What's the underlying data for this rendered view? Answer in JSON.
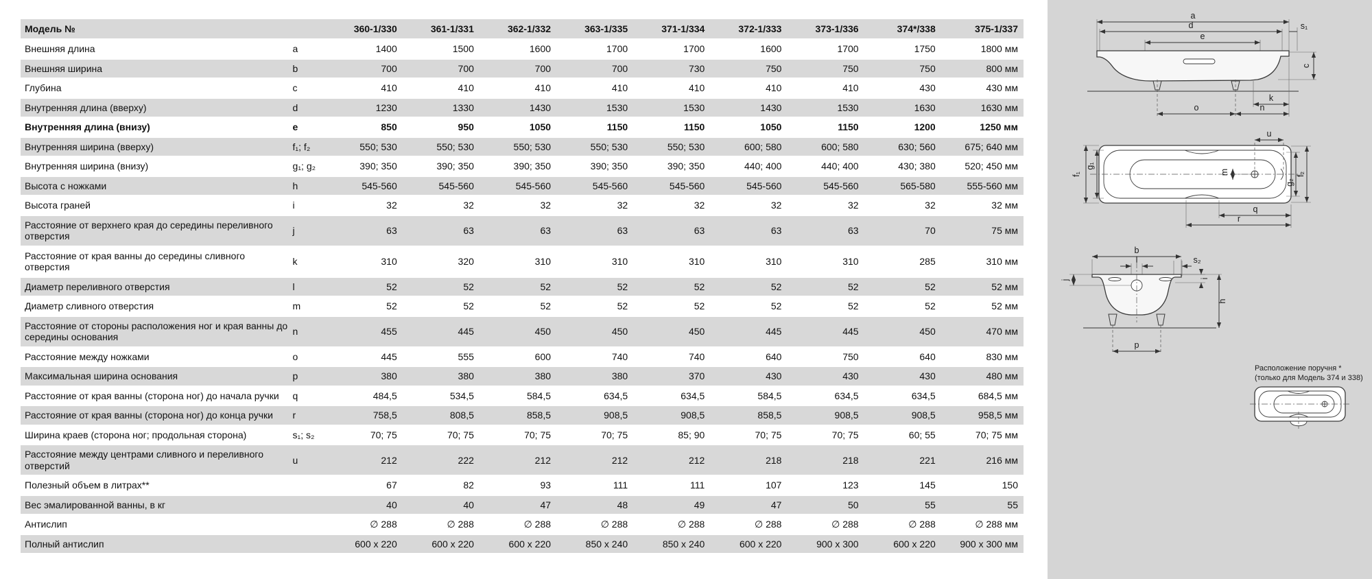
{
  "page": {
    "background": "#ffffff",
    "panel_background": "#d5d5d5",
    "row_stripe": "#d8d8d8",
    "text_color": "#111111"
  },
  "table": {
    "header": {
      "label": "Модель №",
      "models": [
        "360-1/330",
        "361-1/331",
        "362-1/332",
        "363-1/335",
        "371-1/334",
        "372-1/333",
        "373-1/336",
        "374*/338",
        "375-1/337"
      ]
    },
    "rows": [
      {
        "label": "Внешняя длина",
        "letter": "a",
        "values": [
          "1400",
          "1500",
          "1600",
          "1700",
          "1700",
          "1600",
          "1700",
          "1750",
          "1800"
        ],
        "unit": "мм",
        "bold": false
      },
      {
        "label": "Внешняя ширина",
        "letter": "b",
        "values": [
          "700",
          "700",
          "700",
          "700",
          "730",
          "750",
          "750",
          "750",
          "800"
        ],
        "unit": "мм",
        "bold": false
      },
      {
        "label": "Глубина",
        "letter": "c",
        "values": [
          "410",
          "410",
          "410",
          "410",
          "410",
          "410",
          "410",
          "430",
          "430"
        ],
        "unit": "мм",
        "bold": false
      },
      {
        "label": "Внутренняя длина (вверху)",
        "letter": "d",
        "values": [
          "1230",
          "1330",
          "1430",
          "1530",
          "1530",
          "1430",
          "1530",
          "1630",
          "1630"
        ],
        "unit": "мм",
        "bold": false
      },
      {
        "label": "Внутренняя длина (внизу)",
        "letter": "e",
        "values": [
          "850",
          "950",
          "1050",
          "1150",
          "1150",
          "1050",
          "1150",
          "1200",
          "1250"
        ],
        "unit": "мм",
        "bold": true
      },
      {
        "label": "Внутренняя ширина (вверху)",
        "letter": "f₁; f₂",
        "values": [
          "550; 530",
          "550; 530",
          "550; 530",
          "550; 530",
          "550; 530",
          "600; 580",
          "600; 580",
          "630; 560",
          "675; 640"
        ],
        "unit": "мм",
        "bold": false
      },
      {
        "label": "Внутренняя ширина (внизу)",
        "letter": "g₁; g₂",
        "values": [
          "390; 350",
          "390; 350",
          "390; 350",
          "390; 350",
          "390; 350",
          "440; 400",
          "440; 400",
          "430; 380",
          "520; 450"
        ],
        "unit": "мм",
        "bold": false
      },
      {
        "label": "Высота с ножками",
        "letter": "h",
        "values": [
          "545-560",
          "545-560",
          "545-560",
          "545-560",
          "545-560",
          "545-560",
          "545-560",
          "565-580",
          "555-560"
        ],
        "unit": "мм",
        "bold": false
      },
      {
        "label": "Высота граней",
        "letter": "i",
        "values": [
          "32",
          "32",
          "32",
          "32",
          "32",
          "32",
          "32",
          "32",
          "32"
        ],
        "unit": "мм",
        "bold": false
      },
      {
        "label": "Расстояние от верхнего края до середины переливного отверстия",
        "letter": "j",
        "values": [
          "63",
          "63",
          "63",
          "63",
          "63",
          "63",
          "63",
          "70",
          "75"
        ],
        "unit": "мм",
        "bold": false
      },
      {
        "label": "Расстояние от края ванны до середины сливного отверстия",
        "letter": "k",
        "values": [
          "310",
          "320",
          "310",
          "310",
          "310",
          "310",
          "310",
          "285",
          "310"
        ],
        "unit": "мм",
        "bold": false
      },
      {
        "label": "Диаметр переливного отверстия",
        "letter": "l",
        "values": [
          "52",
          "52",
          "52",
          "52",
          "52",
          "52",
          "52",
          "52",
          "52"
        ],
        "unit": "мм",
        "bold": false
      },
      {
        "label": "Диаметр сливного отверстия",
        "letter": "m",
        "values": [
          "52",
          "52",
          "52",
          "52",
          "52",
          "52",
          "52",
          "52",
          "52"
        ],
        "unit": "мм",
        "bold": false
      },
      {
        "label": "Расстояние от стороны расположения ног и края ванны до середины основания",
        "letter": "n",
        "values": [
          "455",
          "445",
          "450",
          "450",
          "450",
          "445",
          "445",
          "450",
          "470"
        ],
        "unit": "мм",
        "bold": false
      },
      {
        "label": "Расстояние между ножками",
        "letter": "o",
        "values": [
          "445",
          "555",
          "600",
          "740",
          "740",
          "640",
          "750",
          "640",
          "830"
        ],
        "unit": "мм",
        "bold": false
      },
      {
        "label": "Максимальная ширина основания",
        "letter": "p",
        "values": [
          "380",
          "380",
          "380",
          "380",
          "370",
          "430",
          "430",
          "430",
          "480"
        ],
        "unit": "мм",
        "bold": false
      },
      {
        "label": "Расстояние от края ванны (сторона ног) до начала ручки",
        "letter": "q",
        "values": [
          "484,5",
          "534,5",
          "584,5",
          "634,5",
          "634,5",
          "584,5",
          "634,5",
          "634,5",
          "684,5"
        ],
        "unit": "мм",
        "bold": false
      },
      {
        "label": "Расстояние от края ванны (сторона ног) до конца ручки",
        "letter": "r",
        "values": [
          "758,5",
          "808,5",
          "858,5",
          "908,5",
          "908,5",
          "858,5",
          "908,5",
          "908,5",
          "958,5"
        ],
        "unit": "мм",
        "bold": false
      },
      {
        "label": "Ширина краев (сторона ног; продольная сторона)",
        "letter": "s₁; s₂",
        "values": [
          "70; 75",
          "70; 75",
          "70; 75",
          "70; 75",
          "85; 90",
          "70; 75",
          "70; 75",
          "60; 55",
          "70; 75"
        ],
        "unit": "мм",
        "bold": false
      },
      {
        "label": "Расстояние между центрами сливного и переливного отверстий",
        "letter": "u",
        "values": [
          "212",
          "222",
          "212",
          "212",
          "212",
          "218",
          "218",
          "221",
          "216"
        ],
        "unit": "мм",
        "bold": false
      },
      {
        "label": "Полезный объем в литрах**",
        "letter": "",
        "values": [
          "67",
          "82",
          "93",
          "111",
          "111",
          "107",
          "123",
          "145",
          "150"
        ],
        "unit": "",
        "bold": false
      },
      {
        "label": "Вес эмалированной ванны, в кг",
        "letter": "",
        "values": [
          "40",
          "40",
          "47",
          "48",
          "49",
          "47",
          "50",
          "55",
          "55"
        ],
        "unit": "",
        "bold": false
      },
      {
        "label": "Антислип",
        "letter": "",
        "values": [
          "∅ 288",
          "∅ 288",
          "∅ 288",
          "∅ 288",
          "∅ 288",
          "∅ 288",
          "∅ 288",
          "∅ 288",
          "∅ 288"
        ],
        "unit": "мм",
        "bold": false
      },
      {
        "label": "Полный антислип",
        "letter": "",
        "values": [
          "600 x 220",
          "600 x 220",
          "600 x 220",
          "850 x 240",
          "850 x 240",
          "600 x 220",
          "900 x 300",
          "600 x 220",
          "900 x 300"
        ],
        "unit": "мм",
        "bold": false
      }
    ]
  },
  "diagram": {
    "caption_line1": "Расположение поручня *",
    "caption_line2": "(только для Модель 374 и 338)",
    "dims": {
      "a": "a",
      "d": "d",
      "e": "e",
      "s1": "s₁",
      "c": "c",
      "k": "k",
      "o": "o",
      "n": "n",
      "u": "u",
      "f1": "f₁",
      "g1": "g₁",
      "m": "m",
      "g2": "g₂",
      "f2": "f₂",
      "q": "q",
      "r": "r",
      "b": "b",
      "l": "l",
      "s2": "s₂",
      "j": "j",
      "i": "i",
      "h": "h",
      "p": "p"
    }
  }
}
